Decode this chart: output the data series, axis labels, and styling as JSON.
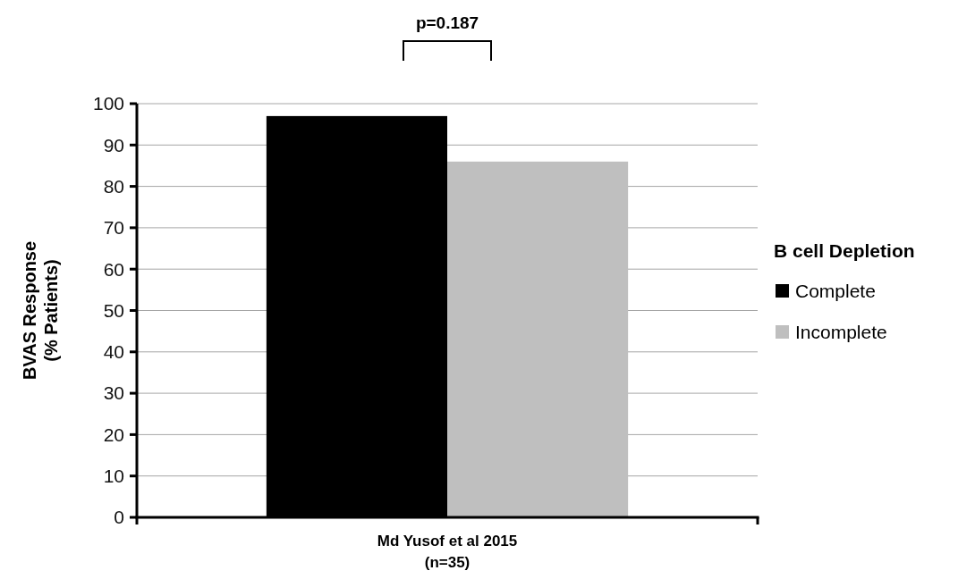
{
  "chart_data": {
    "type": "bar",
    "ylabel": "BVAS Response\n(% Patients)",
    "legend_title": "B cell Depletion",
    "categories": [
      "Md Yusof et al 2015\n(n=35)"
    ],
    "series": [
      {
        "name": "Complete",
        "color": "#000000",
        "values": [
          97
        ]
      },
      {
        "name": "Incomplete",
        "color": "#bfbfbf",
        "values": [
          86
        ]
      }
    ],
    "ylim": [
      0,
      100
    ],
    "yticks": [
      0,
      10,
      20,
      30,
      40,
      50,
      60,
      70,
      80,
      90,
      100
    ],
    "grid": "y",
    "legend": "right",
    "annotations": [
      "p=0.187"
    ]
  }
}
